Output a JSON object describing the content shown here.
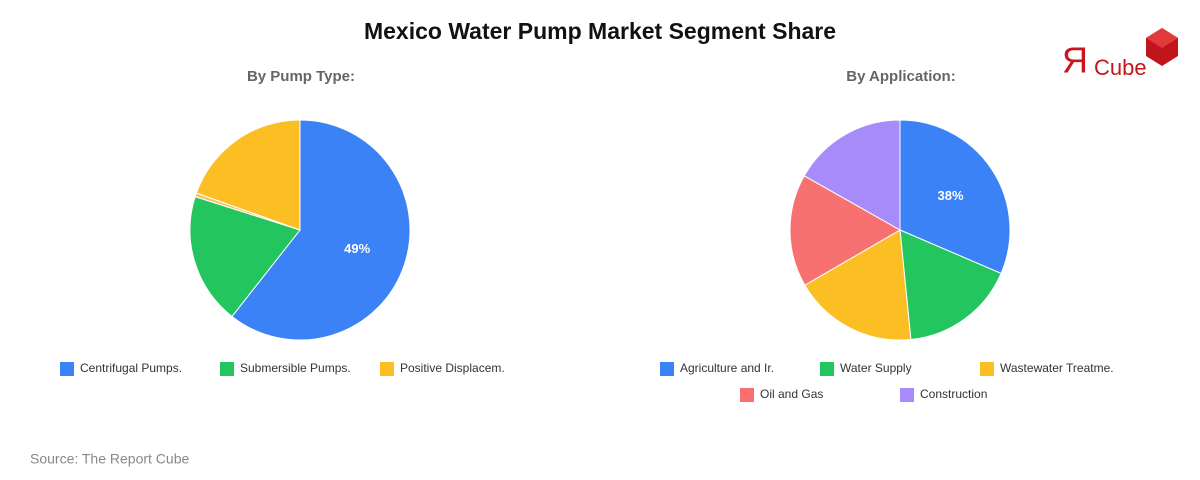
{
  "title": "Mexico Water Pump Market Segment Share",
  "logo": {
    "mark": "Я",
    "text": "Cube"
  },
  "source": "Source: The Report Cube",
  "chart_data": [
    {
      "type": "pie",
      "title": "By Pump Type:",
      "categories": [
        "Centrifugal Pumps.",
        "Submersible Pumps.",
        null,
        "Positive Displacem."
      ],
      "values": [
        49,
        15.6,
        0.45,
        15.8
      ],
      "value_labels": [
        "49%",
        null,
        null,
        null
      ],
      "colors": [
        "#3b82f6",
        "#22c55e",
        "#f6c45a",
        "#fbbf24"
      ]
    },
    {
      "type": "pie",
      "title": "By Application:",
      "categories": [
        "Agriculture and Ir.",
        "Water Supply",
        "Wastewater Treatme.",
        "Oil and Gas",
        "Construction"
      ],
      "values": [
        38,
        20.5,
        22,
        20,
        20.3
      ],
      "value_labels": [
        "38%",
        null,
        null,
        null,
        null
      ],
      "colors": [
        "#3b82f6",
        "#22c55e",
        "#fbbf24",
        "#f87171",
        "#a78bfa"
      ]
    }
  ]
}
